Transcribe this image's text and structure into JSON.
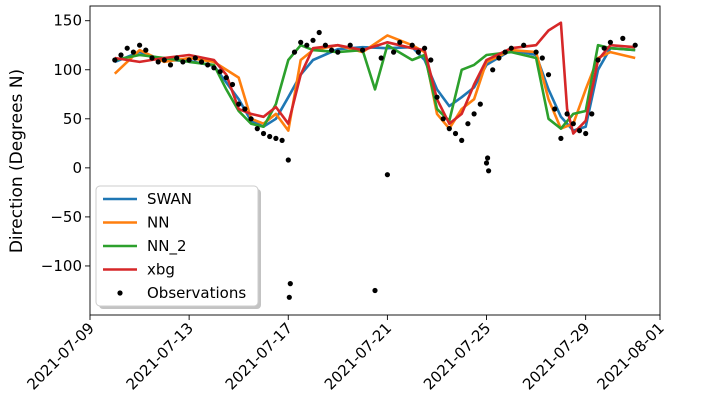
{
  "chart_data": {
    "type": "line",
    "title": "",
    "xlabel": "",
    "ylabel": "Direction (Degrees N)",
    "xlim": [
      "2021-07-09",
      "2021-08-01"
    ],
    "ylim": [
      -150,
      165
    ],
    "x_ticks": [
      "2021-07-09",
      "2021-07-13",
      "2021-07-17",
      "2021-07-21",
      "2021-07-25",
      "2021-07-29",
      "2021-08-01"
    ],
    "y_ticks": [
      -100,
      -50,
      0,
      50,
      100,
      150
    ],
    "grid": false,
    "legend_position": "lower-left",
    "series": [
      {
        "name": "SWAN",
        "color": "#1f77b4",
        "kind": "line",
        "points": [
          [
            "2021-07-10",
            108
          ],
          [
            "2021-07-11",
            118
          ],
          [
            "2021-07-12",
            110
          ],
          [
            "2021-07-13",
            109
          ],
          [
            "2021-07-14",
            104
          ],
          [
            "2021-07-15",
            70
          ],
          [
            "2021-07-15T12:00",
            48
          ],
          [
            "2021-07-16",
            42
          ],
          [
            "2021-07-16T12:00",
            50
          ],
          [
            "2021-07-17",
            72
          ],
          [
            "2021-07-17T12:00",
            95
          ],
          [
            "2021-07-18",
            110
          ],
          [
            "2021-07-19",
            121
          ],
          [
            "2021-07-20",
            123
          ],
          [
            "2021-07-21",
            122
          ],
          [
            "2021-07-22",
            123
          ],
          [
            "2021-07-22T12:00",
            110
          ],
          [
            "2021-07-23",
            80
          ],
          [
            "2021-07-23T12:00",
            63
          ],
          [
            "2021-07-24",
            72
          ],
          [
            "2021-07-24T12:00",
            82
          ],
          [
            "2021-07-25",
            105
          ],
          [
            "2021-07-26",
            120
          ],
          [
            "2021-07-27",
            115
          ],
          [
            "2021-07-27T12:00",
            80
          ],
          [
            "2021-07-28",
            52
          ],
          [
            "2021-07-28T12:00",
            38
          ],
          [
            "2021-07-29",
            42
          ],
          [
            "2021-07-29T12:00",
            100
          ],
          [
            "2021-07-30",
            122
          ],
          [
            "2021-07-31",
            120
          ]
        ]
      },
      {
        "name": "NN",
        "color": "#ff7f0e",
        "kind": "line",
        "points": [
          [
            "2021-07-10",
            96
          ],
          [
            "2021-07-11",
            120
          ],
          [
            "2021-07-12",
            108
          ],
          [
            "2021-07-13",
            112
          ],
          [
            "2021-07-14",
            108
          ],
          [
            "2021-07-15",
            92
          ],
          [
            "2021-07-15T12:00",
            50
          ],
          [
            "2021-07-16",
            45
          ],
          [
            "2021-07-16T12:00",
            55
          ],
          [
            "2021-07-17",
            38
          ],
          [
            "2021-07-17T12:00",
            110
          ],
          [
            "2021-07-18",
            120
          ],
          [
            "2021-07-19",
            125
          ],
          [
            "2021-07-20",
            118
          ],
          [
            "2021-07-21",
            135
          ],
          [
            "2021-07-22",
            125
          ],
          [
            "2021-07-22T12:00",
            118
          ],
          [
            "2021-07-23",
            55
          ],
          [
            "2021-07-23T12:00",
            40
          ],
          [
            "2021-07-24",
            60
          ],
          [
            "2021-07-24T12:00",
            70
          ],
          [
            "2021-07-25",
            108
          ],
          [
            "2021-07-26",
            120
          ],
          [
            "2021-07-27",
            118
          ],
          [
            "2021-07-27T12:00",
            70
          ],
          [
            "2021-07-28",
            40
          ],
          [
            "2021-07-28T12:00",
            45
          ],
          [
            "2021-07-29",
            80
          ],
          [
            "2021-07-29T12:00",
            112
          ],
          [
            "2021-07-30",
            118
          ],
          [
            "2021-07-31",
            112
          ]
        ]
      },
      {
        "name": "NN_2",
        "color": "#2ca02c",
        "kind": "line",
        "points": [
          [
            "2021-07-10",
            110
          ],
          [
            "2021-07-11",
            115
          ],
          [
            "2021-07-12",
            112
          ],
          [
            "2021-07-13",
            108
          ],
          [
            "2021-07-14",
            105
          ],
          [
            "2021-07-14T12:00",
            80
          ],
          [
            "2021-07-15",
            58
          ],
          [
            "2021-07-15T12:00",
            45
          ],
          [
            "2021-07-16",
            42
          ],
          [
            "2021-07-16T12:00",
            65
          ],
          [
            "2021-07-17",
            110
          ],
          [
            "2021-07-17T12:00",
            125
          ],
          [
            "2021-07-18",
            120
          ],
          [
            "2021-07-19",
            118
          ],
          [
            "2021-07-20",
            120
          ],
          [
            "2021-07-20T12:00",
            80
          ],
          [
            "2021-07-21",
            125
          ],
          [
            "2021-07-22",
            110
          ],
          [
            "2021-07-22T12:00",
            115
          ],
          [
            "2021-07-23",
            60
          ],
          [
            "2021-07-23T12:00",
            48
          ],
          [
            "2021-07-24",
            100
          ],
          [
            "2021-07-24T12:00",
            105
          ],
          [
            "2021-07-25",
            115
          ],
          [
            "2021-07-26",
            118
          ],
          [
            "2021-07-27",
            112
          ],
          [
            "2021-07-27T12:00",
            50
          ],
          [
            "2021-07-28",
            40
          ],
          [
            "2021-07-28T12:00",
            55
          ],
          [
            "2021-07-29",
            58
          ],
          [
            "2021-07-29T12:00",
            125
          ],
          [
            "2021-07-30",
            122
          ],
          [
            "2021-07-31",
            120
          ]
        ]
      },
      {
        "name": "xbg",
        "color": "#d62728",
        "kind": "line",
        "points": [
          [
            "2021-07-10",
            112
          ],
          [
            "2021-07-11",
            108
          ],
          [
            "2021-07-12",
            112
          ],
          [
            "2021-07-13",
            115
          ],
          [
            "2021-07-14",
            110
          ],
          [
            "2021-07-14T12:00",
            95
          ],
          [
            "2021-07-15",
            60
          ],
          [
            "2021-07-15T12:00",
            55
          ],
          [
            "2021-07-16",
            52
          ],
          [
            "2021-07-16T12:00",
            62
          ],
          [
            "2021-07-17",
            45
          ],
          [
            "2021-07-17T12:00",
            95
          ],
          [
            "2021-07-18",
            122
          ],
          [
            "2021-07-19",
            125
          ],
          [
            "2021-07-20",
            120
          ],
          [
            "2021-07-21",
            128
          ],
          [
            "2021-07-22",
            122
          ],
          [
            "2021-07-22T12:00",
            120
          ],
          [
            "2021-07-23",
            70
          ],
          [
            "2021-07-23T12:00",
            45
          ],
          [
            "2021-07-24",
            55
          ],
          [
            "2021-07-24T12:00",
            85
          ],
          [
            "2021-07-25",
            110
          ],
          [
            "2021-07-26",
            122
          ],
          [
            "2021-07-27",
            125
          ],
          [
            "2021-07-27T12:00",
            140
          ],
          [
            "2021-07-28",
            148
          ],
          [
            "2021-07-28T06:00",
            60
          ],
          [
            "2021-07-28T12:00",
            35
          ],
          [
            "2021-07-29",
            48
          ],
          [
            "2021-07-29T12:00",
            110
          ],
          [
            "2021-07-30",
            125
          ],
          [
            "2021-07-31",
            123
          ]
        ]
      },
      {
        "name": "Observations",
        "color": "#000000",
        "kind": "scatter",
        "points": [
          [
            "2021-07-10",
            110
          ],
          [
            "2021-07-10T06:00",
            115
          ],
          [
            "2021-07-10T12:00",
            122
          ],
          [
            "2021-07-10T18:00",
            118
          ],
          [
            "2021-07-11",
            125
          ],
          [
            "2021-07-11T06:00",
            120
          ],
          [
            "2021-07-11T12:00",
            112
          ],
          [
            "2021-07-11T18:00",
            108
          ],
          [
            "2021-07-12",
            110
          ],
          [
            "2021-07-12T06:00",
            105
          ],
          [
            "2021-07-12T12:00",
            112
          ],
          [
            "2021-07-12T18:00",
            108
          ],
          [
            "2021-07-13",
            110
          ],
          [
            "2021-07-13T06:00",
            112
          ],
          [
            "2021-07-13T12:00",
            108
          ],
          [
            "2021-07-13T18:00",
            105
          ],
          [
            "2021-07-14",
            102
          ],
          [
            "2021-07-14T06:00",
            98
          ],
          [
            "2021-07-14T12:00",
            92
          ],
          [
            "2021-07-14T18:00",
            85
          ],
          [
            "2021-07-15",
            65
          ],
          [
            "2021-07-15T06:00",
            60
          ],
          [
            "2021-07-15T12:00",
            50
          ],
          [
            "2021-07-15T18:00",
            40
          ],
          [
            "2021-07-16",
            35
          ],
          [
            "2021-07-16T06:00",
            32
          ],
          [
            "2021-07-16T12:00",
            30
          ],
          [
            "2021-07-16T18:00",
            28
          ],
          [
            "2021-07-17",
            8
          ],
          [
            "2021-07-17T02:00",
            -118
          ],
          [
            "2021-07-17T01:00",
            -132
          ],
          [
            "2021-07-17T06:00",
            118
          ],
          [
            "2021-07-17T12:00",
            128
          ],
          [
            "2021-07-17T18:00",
            125
          ],
          [
            "2021-07-18",
            130
          ],
          [
            "2021-07-18T06:00",
            138
          ],
          [
            "2021-07-18T12:00",
            125
          ],
          [
            "2021-07-18T18:00",
            120
          ],
          [
            "2021-07-19",
            118
          ],
          [
            "2021-07-19T12:00",
            125
          ],
          [
            "2021-07-20",
            120
          ],
          [
            "2021-07-20T12:00",
            -125
          ],
          [
            "2021-07-20T18:00",
            112
          ],
          [
            "2021-07-21",
            -7
          ],
          [
            "2021-07-21T06:00",
            118
          ],
          [
            "2021-07-21T12:00",
            128
          ],
          [
            "2021-07-22",
            125
          ],
          [
            "2021-07-22T06:00",
            118
          ],
          [
            "2021-07-22T12:00",
            122
          ],
          [
            "2021-07-22T18:00",
            110
          ],
          [
            "2021-07-23",
            72
          ],
          [
            "2021-07-23T06:00",
            50
          ],
          [
            "2021-07-23T12:00",
            40
          ],
          [
            "2021-07-23T18:00",
            35
          ],
          [
            "2021-07-24",
            28
          ],
          [
            "2021-07-24T06:00",
            45
          ],
          [
            "2021-07-24T12:00",
            55
          ],
          [
            "2021-07-24T18:00",
            65
          ],
          [
            "2021-07-25",
            5
          ],
          [
            "2021-07-25T01:00",
            10
          ],
          [
            "2021-07-25T02:00",
            -3
          ],
          [
            "2021-07-25T06:00",
            100
          ],
          [
            "2021-07-25T12:00",
            112
          ],
          [
            "2021-07-25T18:00",
            118
          ],
          [
            "2021-07-26",
            122
          ],
          [
            "2021-07-26T12:00",
            125
          ],
          [
            "2021-07-27",
            118
          ],
          [
            "2021-07-27T06:00",
            112
          ],
          [
            "2021-07-27T12:00",
            95
          ],
          [
            "2021-07-27T18:00",
            60
          ],
          [
            "2021-07-28",
            30
          ],
          [
            "2021-07-28T06:00",
            55
          ],
          [
            "2021-07-28T12:00",
            45
          ],
          [
            "2021-07-28T18:00",
            38
          ],
          [
            "2021-07-29",
            35
          ],
          [
            "2021-07-29T06:00",
            55
          ],
          [
            "2021-07-29T12:00",
            110
          ],
          [
            "2021-07-29T18:00",
            122
          ],
          [
            "2021-07-30",
            128
          ],
          [
            "2021-07-30T12:00",
            132
          ],
          [
            "2021-07-31",
            125
          ]
        ]
      }
    ]
  }
}
